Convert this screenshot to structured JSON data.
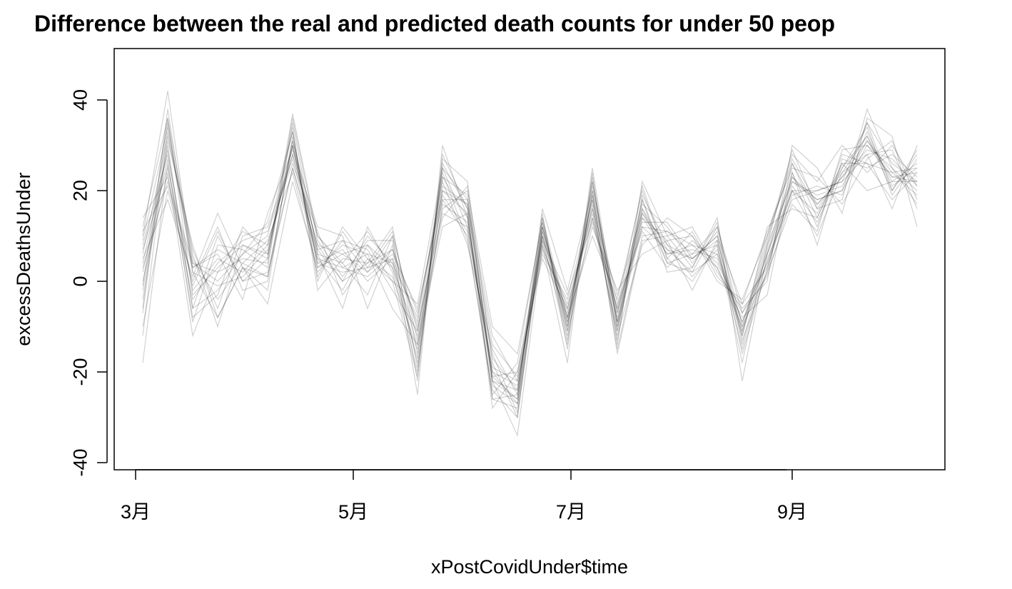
{
  "chart_data": {
    "type": "line",
    "title": "Difference between the real and predicted death counts for under 50 peop",
    "xlabel": "xPostCovidUnder$time",
    "ylabel": "excessDeathsUnder",
    "x_ticks": [
      "3月",
      "5月",
      "7月",
      "9月"
    ],
    "y_ticks": [
      -40,
      -20,
      0,
      20,
      40
    ],
    "ylim": [
      -40,
      50
    ],
    "grid": false,
    "legend": "none",
    "line_color": "#000000",
    "line_opacity": 0.18,
    "dates": [
      "2020-03-03",
      "2020-03-10",
      "2020-03-17",
      "2020-03-24",
      "2020-03-31",
      "2020-04-07",
      "2020-04-14",
      "2020-04-21",
      "2020-04-28",
      "2020-05-05",
      "2020-05-12",
      "2020-05-19",
      "2020-05-26",
      "2020-06-02",
      "2020-06-09",
      "2020-06-16",
      "2020-06-23",
      "2020-06-30",
      "2020-07-07",
      "2020-07-14",
      "2020-07-21",
      "2020-07-28",
      "2020-08-04",
      "2020-08-11",
      "2020-08-18",
      "2020-08-25",
      "2020-09-01",
      "2020-09-08",
      "2020-09-15",
      "2020-09-22",
      "2020-09-29",
      "2020-10-06"
    ],
    "series": [
      {
        "values": [
          -7,
          35,
          2,
          -8,
          3,
          1,
          30,
          4,
          2,
          3,
          5,
          -18,
          20,
          17,
          -22,
          -24,
          12,
          -10,
          22,
          -10,
          15,
          8,
          5,
          10,
          -5,
          3,
          20,
          15,
          25,
          32,
          22,
          22
        ]
      },
      {
        "values": [
          8,
          28,
          -2,
          5,
          2,
          8,
          28,
          8,
          6,
          2,
          7,
          -10,
          15,
          12,
          -20,
          -27,
          9,
          -12,
          14,
          -6,
          12,
          7,
          2,
          6,
          -12,
          8,
          22,
          18,
          20,
          30,
          25,
          20
        ]
      },
      {
        "values": [
          3,
          22,
          4,
          0,
          6,
          10,
          33,
          0,
          12,
          5,
          0,
          -5,
          25,
          18,
          -12,
          -22,
          6,
          -4,
          18,
          -15,
          10,
          11,
          8,
          3,
          -8,
          -3,
          24,
          12,
          28,
          26,
          18,
          24
        ]
      },
      {
        "values": [
          -4,
          30,
          -6,
          10,
          0,
          2,
          25,
          5,
          -2,
          8,
          3,
          -12,
          18,
          10,
          -25,
          -18,
          14,
          -8,
          10,
          -4,
          20,
          5,
          0,
          8,
          -15,
          5,
          18,
          20,
          22,
          35,
          20,
          28
        ]
      },
      {
        "values": [
          12,
          36,
          6,
          -10,
          8,
          5,
          37,
          10,
          4,
          -3,
          10,
          -22,
          27,
          22,
          -18,
          -30,
          10,
          -14,
          25,
          -9,
          16,
          4,
          6,
          12,
          -10,
          2,
          26,
          16,
          18,
          38,
          25,
          17
        ]
      },
      {
        "values": [
          5,
          18,
          1,
          15,
          3,
          -5,
          22,
          3,
          8,
          6,
          -6,
          -14,
          12,
          15,
          -28,
          -20,
          5,
          -6,
          16,
          -12,
          8,
          14,
          10,
          0,
          -4,
          10,
          28,
          22,
          30,
          24,
          30,
          21
        ]
      },
      {
        "values": [
          -18,
          26,
          -8,
          -3,
          12,
          6,
          31,
          7,
          0,
          10,
          4,
          -8,
          22,
          8,
          -15,
          -25,
          16,
          -2,
          20,
          -7,
          18,
          2,
          3,
          14,
          -22,
          6,
          20,
          10,
          24,
          28,
          16,
          30
        ]
      },
      {
        "values": [
          10,
          42,
          3,
          6,
          -4,
          15,
          29,
          12,
          10,
          -6,
          8,
          -25,
          30,
          14,
          -22,
          -34,
          8,
          -18,
          24,
          -14,
          22,
          10,
          12,
          2,
          -6,
          0,
          30,
          25,
          15,
          36,
          32,
          12
        ]
      },
      {
        "values": [
          0,
          24,
          -12,
          2,
          5,
          4,
          34,
          -2,
          5,
          4,
          12,
          -16,
          16,
          20,
          -10,
          -16,
          13,
          -9,
          12,
          -2,
          6,
          9,
          -2,
          9,
          -12,
          12,
          16,
          14,
          26,
          20,
          22,
          26
        ]
      },
      {
        "values": [
          6,
          32,
          7,
          -6,
          10,
          12,
          27,
          6,
          -6,
          12,
          2,
          -20,
          26,
          16,
          -26,
          -28,
          11,
          -11,
          19,
          -11,
          14,
          6,
          7,
          5,
          -9,
          4,
          22,
          19,
          21,
          31,
          24,
          19
        ]
      },
      {
        "values": [
          -10,
          20,
          0,
          12,
          -2,
          0,
          31,
          10,
          3,
          1,
          6,
          -6,
          19,
          11,
          -19,
          -22,
          7,
          -5,
          15,
          -8,
          17,
          12,
          4,
          11,
          -14,
          7,
          24,
          8,
          27,
          25,
          28,
          23
        ]
      },
      {
        "values": [
          9,
          34,
          5,
          -4,
          4,
          9,
          24,
          2,
          9,
          7,
          -2,
          -11,
          23,
          19,
          -21,
          -26,
          15,
          -15,
          21,
          -5,
          11,
          3,
          9,
          4,
          -7,
          1,
          19,
          21,
          19,
          33,
          21,
          25
        ]
      },
      {
        "values": [
          2,
          27,
          -9,
          8,
          7,
          3,
          36,
          9,
          1,
          9,
          9,
          -19,
          17,
          13,
          -17,
          -24,
          10,
          -7,
          17,
          -13,
          19,
          8,
          1,
          7,
          -11,
          9,
          27,
          17,
          23,
          29,
          27,
          21
        ]
      },
      {
        "values": [
          -6,
          38,
          2,
          -1,
          1,
          7,
          30,
          4,
          7,
          0,
          5,
          -9,
          24,
          9,
          -24,
          -30,
          12,
          -10,
          23,
          -9,
          13,
          13,
          5,
          10,
          -16,
          3,
          21,
          13,
          25,
          34,
          19,
          27
        ]
      },
      {
        "values": [
          14,
          23,
          -4,
          4,
          9,
          11,
          26,
          11,
          -3,
          5,
          1,
          -15,
          21,
          17,
          -14,
          -21,
          9,
          -3,
          13,
          -6,
          21,
          5,
          11,
          1,
          -5,
          11,
          25,
          23,
          17,
          27,
          31,
          18
        ]
      },
      {
        "values": [
          -2,
          31,
          8,
          -8,
          3,
          -2,
          32,
          1,
          11,
          3,
          11,
          -13,
          14,
          21,
          -23,
          -27,
          14,
          -13,
          20,
          -16,
          9,
          10,
          3,
          13,
          -13,
          2,
          17,
          11,
          29,
          30,
          23,
          24
        ]
      },
      {
        "values": [
          7,
          25,
          -1,
          11,
          0,
          5,
          35,
          6,
          4,
          11,
          3,
          -17,
          25,
          12,
          -20,
          -23,
          8,
          -8,
          16,
          -3,
          15,
          6,
          8,
          6,
          -9,
          6,
          23,
          18,
          20,
          35,
          26,
          22
        ]
      },
      {
        "values": [
          -12,
          33,
          4,
          2,
          11,
          8,
          28,
          8,
          0,
          4,
          7,
          -7,
          20,
          15,
          -26,
          -25,
          13,
          -11,
          22,
          -10,
          12,
          11,
          6,
          8,
          -18,
          8,
          29,
          16,
          24,
          32,
          20,
          29
        ]
      },
      {
        "values": [
          4,
          29,
          -6,
          -2,
          6,
          13,
          33,
          3,
          6,
          8,
          0,
          -21,
          28,
          16,
          -16,
          -29,
          11,
          -6,
          14,
          -11,
          18,
          4,
          2,
          12,
          -7,
          4,
          20,
          20,
          22,
          28,
          29,
          16
        ]
      },
      {
        "values": [
          11,
          21,
          3,
          7,
          4,
          1,
          25,
          7,
          9,
          2,
          10,
          -11,
          18,
          18,
          -21,
          -20,
          10,
          -9,
          19,
          -7,
          14,
          9,
          10,
          3,
          -10,
          10,
          26,
          14,
          26,
          26,
          24,
          25
        ]
      },
      {
        "values": [
          -1,
          36,
          -3,
          3,
          8,
          6,
          30,
          5,
          3,
          6,
          4,
          -14,
          23,
          14,
          -22,
          -26,
          12,
          -8,
          18,
          -9,
          16,
          7,
          5,
          9,
          -11,
          6,
          23,
          17,
          23,
          31,
          23,
          22
        ]
      }
    ]
  }
}
